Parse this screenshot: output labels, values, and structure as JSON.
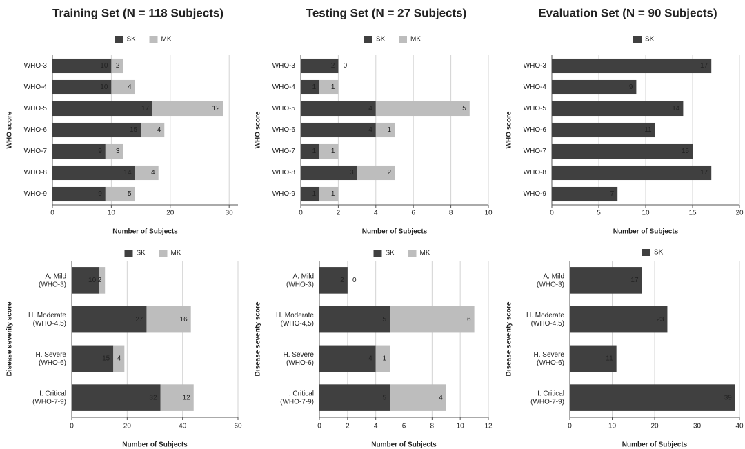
{
  "chart_data": [
    {
      "type": "bar",
      "stacked": true,
      "orientation": "horizontal",
      "title": "Training Set (N = 118 Subjects)",
      "categories": [
        "WHO-3",
        "WHO-4",
        "WHO-5",
        "WHO-6",
        "WHO-7",
        "WHO-8",
        "WHO-9"
      ],
      "series": [
        {
          "name": "SK",
          "color": "#404040",
          "values": [
            10,
            10,
            17,
            15,
            9,
            14,
            9
          ]
        },
        {
          "name": "MK",
          "color": "#bdbdbd",
          "values": [
            2,
            4,
            12,
            4,
            3,
            4,
            5
          ]
        }
      ],
      "xlim": [
        0,
        31.5
      ],
      "xticks": [
        0,
        10,
        20,
        30
      ],
      "xlabel": "Number of Subjects",
      "ylabel": "WHO score",
      "grid": true
    },
    {
      "type": "bar",
      "stacked": true,
      "orientation": "horizontal",
      "title": "Testing Set (N = 27 Subjects)",
      "categories": [
        "WHO-3",
        "WHO-4",
        "WHO-5",
        "WHO-6",
        "WHO-7",
        "WHO-8",
        "WHO-9"
      ],
      "series": [
        {
          "name": "SK",
          "color": "#404040",
          "values": [
            2,
            1,
            4,
            4,
            1,
            3,
            1
          ]
        },
        {
          "name": "MK",
          "color": "#bdbdbd",
          "values": [
            0,
            1,
            5,
            1,
            1,
            2,
            1
          ]
        }
      ],
      "xlim": [
        0,
        10
      ],
      "xticks": [
        0,
        2,
        4,
        6,
        8,
        10
      ],
      "xlabel": "Number of Subjects",
      "ylabel": "WHO score",
      "grid": true
    },
    {
      "type": "bar",
      "stacked": true,
      "orientation": "horizontal",
      "title": "Evaluation Set (N = 90 Subjects)",
      "categories": [
        "WHO-3",
        "WHO-4",
        "WHO-5",
        "WHO-6",
        "WHO-7",
        "WHO-8",
        "WHO-9"
      ],
      "series": [
        {
          "name": "SK",
          "color": "#404040",
          "values": [
            17,
            9,
            14,
            11,
            15,
            17,
            7
          ]
        }
      ],
      "xlim": [
        0,
        20
      ],
      "xticks": [
        0,
        5,
        10,
        15,
        20
      ],
      "xlabel": "Number of Subjects",
      "ylabel": "WHO score",
      "grid": true
    },
    {
      "type": "bar",
      "stacked": true,
      "orientation": "horizontal",
      "categories": [
        "A. Mild\n(WHO-3)",
        "H. Moderate\n(WHO-4,5)",
        "H. Severe\n(WHO-6)",
        "I. Critical\n(WHO-7-9)"
      ],
      "series": [
        {
          "name": "SK",
          "color": "#404040",
          "values": [
            10,
            27,
            15,
            32
          ]
        },
        {
          "name": "MK",
          "color": "#bdbdbd",
          "values": [
            2,
            16,
            4,
            12
          ]
        }
      ],
      "xlim": [
        0,
        60
      ],
      "xticks": [
        0,
        20,
        40,
        60
      ],
      "xlabel": "Number of Subjects",
      "ylabel": "Disease severity score",
      "grid": true
    },
    {
      "type": "bar",
      "stacked": true,
      "orientation": "horizontal",
      "categories": [
        "A. Mild\n(WHO-3)",
        "H. Moderate\n(WHO-4,5)",
        "H. Severe\n(WHO-6)",
        "I. Critical\n(WHO-7-9)"
      ],
      "series": [
        {
          "name": "SK",
          "color": "#404040",
          "values": [
            2,
            5,
            4,
            5
          ]
        },
        {
          "name": "MK",
          "color": "#bdbdbd",
          "values": [
            0,
            6,
            1,
            4
          ]
        }
      ],
      "xlim": [
        0,
        12
      ],
      "xticks": [
        0,
        2,
        4,
        6,
        8,
        10,
        12
      ],
      "xlabel": "Number of Subjects",
      "ylabel": "Disease severity score",
      "grid": true
    },
    {
      "type": "bar",
      "stacked": true,
      "orientation": "horizontal",
      "categories": [
        "A. Mild\n(WHO-3)",
        "H. Moderate\n(WHO-4,5)",
        "H. Severe\n(WHO-6)",
        "I. Critical\n(WHO-7-9)"
      ],
      "series": [
        {
          "name": "SK",
          "color": "#404040",
          "values": [
            17,
            23,
            11,
            39
          ]
        }
      ],
      "xlim": [
        0,
        40
      ],
      "xticks": [
        0,
        10,
        20,
        30,
        40
      ],
      "xlabel": "Number of Subjects",
      "ylabel": "Disease severity score",
      "grid": true
    }
  ]
}
